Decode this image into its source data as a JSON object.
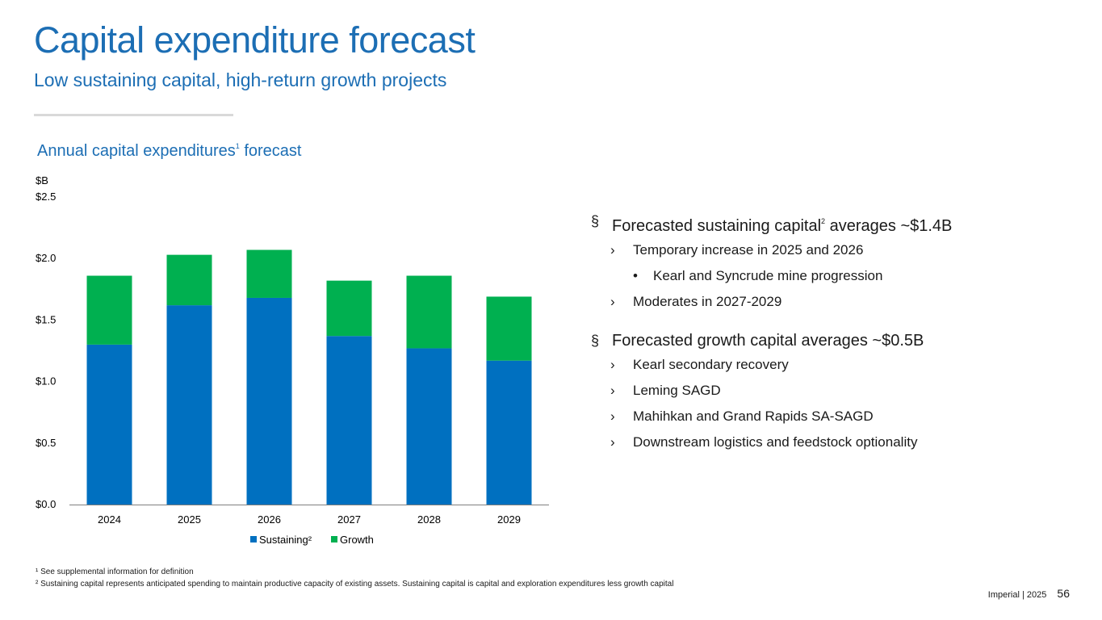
{
  "header": {
    "title": "Capital expenditure forecast",
    "subtitle": "Low sustaining capital, high-return growth projects"
  },
  "chart_data": {
    "type": "bar",
    "stacked": true,
    "title": "Annual capital expenditures",
    "title_superscript": "1",
    "title_suffix": "forecast",
    "ylabel": "$B",
    "ylim": [
      0,
      2.5
    ],
    "yticks": [
      "$0.0",
      "$0.5",
      "$1.0",
      "$1.5",
      "$2.0",
      "$2.5"
    ],
    "categories": [
      "2024",
      "2025",
      "2026",
      "2027",
      "2028",
      "2029"
    ],
    "series": [
      {
        "name": "Sustaining²",
        "color": "#0070c0",
        "values": [
          1.3,
          1.62,
          1.68,
          1.37,
          1.27,
          1.17
        ]
      },
      {
        "name": "Growth",
        "color": "#00b050",
        "values": [
          0.56,
          0.41,
          0.39,
          0.45,
          0.59,
          0.52
        ]
      }
    ],
    "legend_position": "bottom",
    "grid": false
  },
  "bullets": {
    "sustaining_head": "Forecasted sustaining capital",
    "sustaining_sup": "2",
    "sustaining_tail": " averages ~$1.4B",
    "sustaining_items": [
      "Temporary increase in 2025 and 2026",
      "Moderates in 2027-2029"
    ],
    "sustaining_sub": "Kearl and Syncrude mine progression",
    "growth_head": "Forecasted growth capital averages ~$0.5B",
    "growth_items": [
      "Kearl secondary recovery",
      "Leming SAGD",
      "Mahihkan and Grand Rapids SA-SAGD",
      "Downstream logistics and feedstock optionality"
    ],
    "marks": {
      "level1": "§",
      "level2": "›",
      "level3": "•"
    }
  },
  "footnotes": {
    "note1": "¹ See supplemental information for definition",
    "note2": "² Sustaining capital represents anticipated spending to maintain productive capacity of existing assets. Sustaining capital is capital and exploration expenditures less growth capital"
  },
  "footer": {
    "company": "Imperial",
    "separator": "|",
    "year": "2025",
    "page_number": "56"
  }
}
